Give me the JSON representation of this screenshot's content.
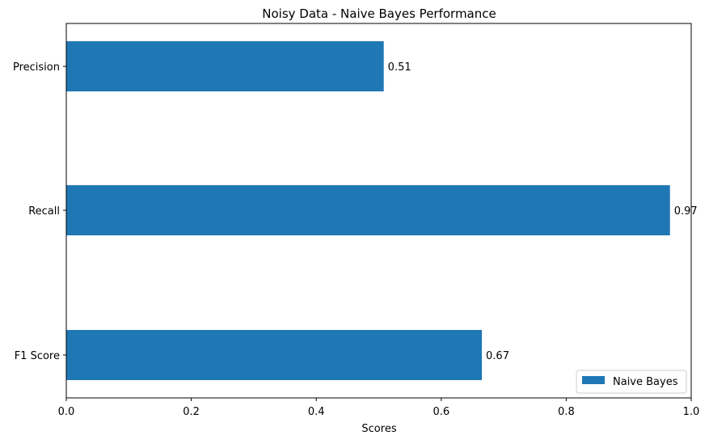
{
  "chart_data": {
    "type": "bar",
    "orientation": "horizontal",
    "title": "Noisy Data - Naive Bayes Performance",
    "xlabel": "Scores",
    "ylabel": "",
    "categories": [
      "Precision",
      "Recall",
      "F1 Score"
    ],
    "series": [
      {
        "name": "Naive Bayes",
        "values": [
          0.508,
          0.966,
          0.665
        ],
        "labels": [
          "0.51",
          "0.97",
          "0.67"
        ],
        "color": "#1f77b4"
      }
    ],
    "xlim": [
      0.0,
      1.0
    ],
    "xticks": [
      0.0,
      0.2,
      0.4,
      0.6,
      0.8,
      1.0
    ],
    "xtick_labels": [
      "0.0",
      "0.2",
      "0.4",
      "0.6",
      "0.8",
      "1.0"
    ],
    "grid": false,
    "legend_position": "bottom-right"
  }
}
